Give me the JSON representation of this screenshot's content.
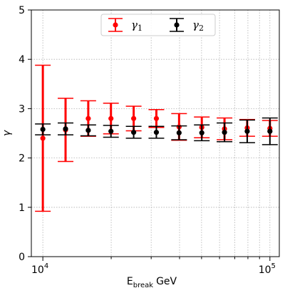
{
  "chart_data": {
    "type": "scatter",
    "x_scale": "log",
    "xlim": [
      8900,
      110000
    ],
    "ylim": [
      0,
      5
    ],
    "grid": true,
    "ylabel": "γ",
    "xlabel": {
      "main": "E",
      "subscript": "break",
      "unit": "GeV"
    },
    "y_ticks": [
      0,
      1,
      2,
      3,
      4,
      5
    ],
    "x_ticks_major": [
      {
        "value": 10000,
        "base": "10",
        "exp": "4"
      },
      {
        "value": 100000,
        "base": "10",
        "exp": "5"
      }
    ],
    "x_ticks_minor": [
      20000,
      30000,
      40000,
      50000,
      60000,
      70000,
      80000,
      90000
    ],
    "legend_position": "top-center",
    "series": [
      {
        "name": "γ₁",
        "legend_base": "γ",
        "legend_sub": "1",
        "color": "#ff0000",
        "x": [
          10000,
          12590,
          15850,
          19950,
          25120,
          31620,
          39810,
          50120,
          63100,
          79430,
          100000
        ],
        "y": [
          2.4,
          2.57,
          2.8,
          2.8,
          2.8,
          2.8,
          2.63,
          2.62,
          2.59,
          2.61,
          2.6
        ],
        "yerr": [
          1.48,
          0.64,
          0.36,
          0.31,
          0.25,
          0.18,
          0.27,
          0.21,
          0.22,
          0.17,
          0.16
        ]
      },
      {
        "name": "γ₂",
        "legend_base": "γ",
        "legend_sub": "2",
        "color": "#000000",
        "x": [
          10000,
          12590,
          15850,
          19950,
          25120,
          31620,
          39810,
          50120,
          63100,
          79430,
          100000
        ],
        "y": [
          2.58,
          2.59,
          2.56,
          2.54,
          2.52,
          2.52,
          2.51,
          2.51,
          2.52,
          2.54,
          2.54
        ],
        "yerr": [
          0.11,
          0.12,
          0.11,
          0.12,
          0.12,
          0.12,
          0.14,
          0.16,
          0.19,
          0.23,
          0.27
        ]
      }
    ]
  }
}
